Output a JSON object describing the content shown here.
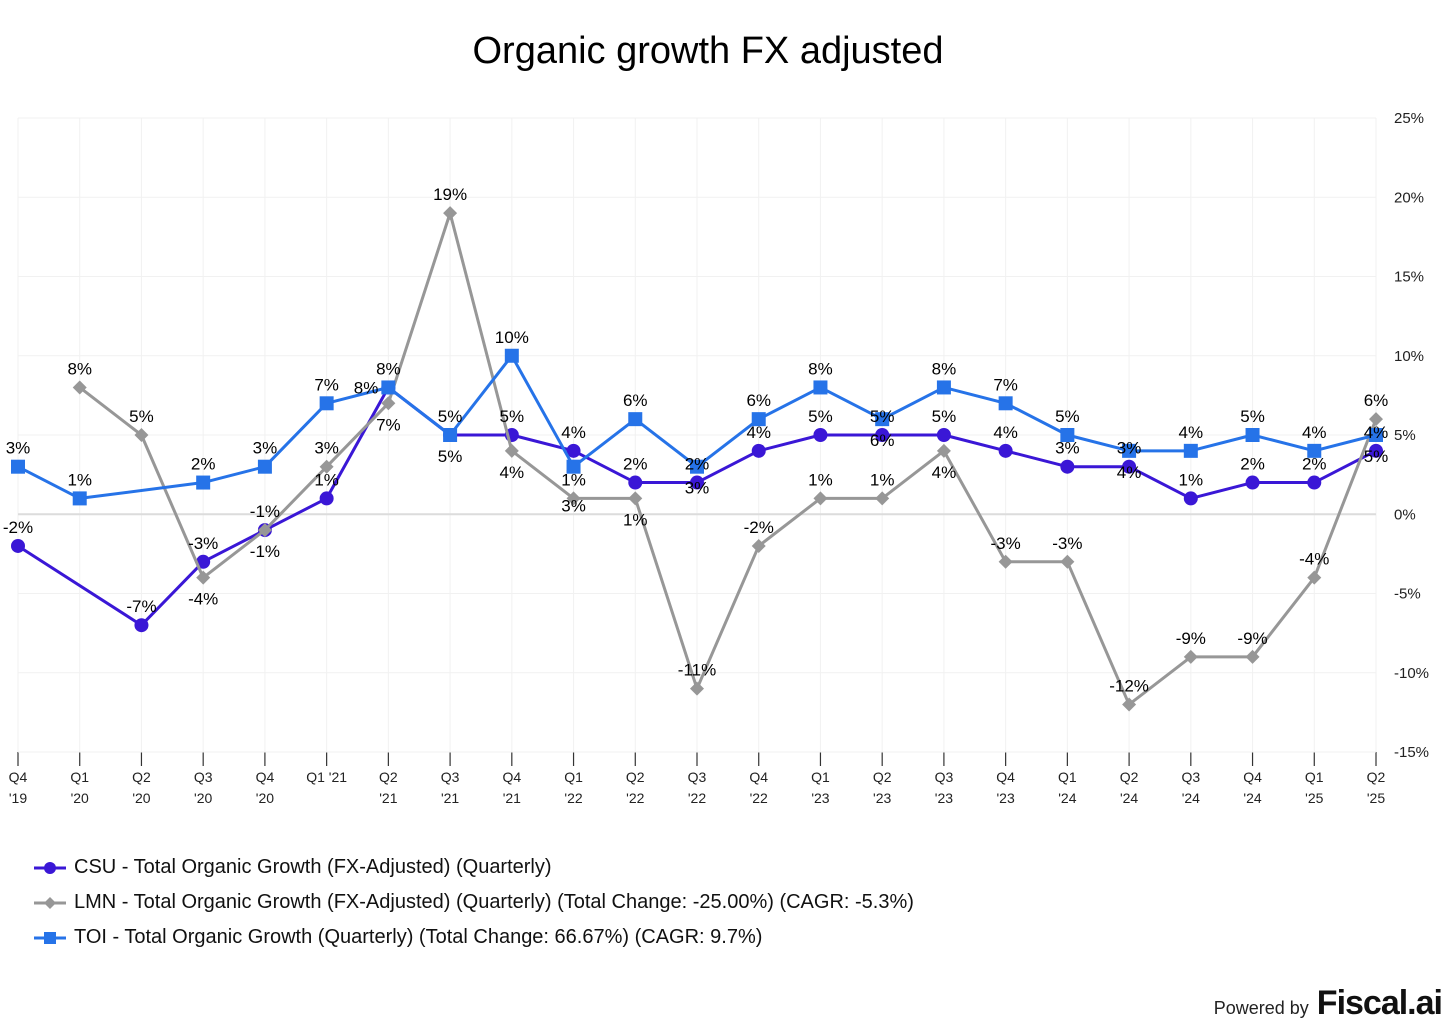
{
  "chart_data": {
    "type": "line",
    "title": "Organic growth FX adjusted",
    "xlabel": "",
    "ylabel": "",
    "ylim": [
      -15,
      25
    ],
    "yticks": [
      25,
      20,
      15,
      10,
      5,
      0,
      -5,
      -10,
      -15
    ],
    "ytick_labels": [
      "25%",
      "20%",
      "15%",
      "10%",
      "5%",
      "0%",
      "-5%",
      "-10%",
      "-15%"
    ],
    "y_axis_side": "right",
    "grid": true,
    "legend_position": "bottom-left",
    "categories": [
      [
        "Q4",
        "'19"
      ],
      [
        "Q1",
        "'20"
      ],
      [
        "Q2",
        "'20"
      ],
      [
        "Q3",
        "'20"
      ],
      [
        "Q4",
        "'20"
      ],
      [
        "Q1 '21",
        ""
      ],
      [
        "Q2",
        "'21"
      ],
      [
        "Q3",
        "'21"
      ],
      [
        "Q4",
        "'21"
      ],
      [
        "Q1",
        "'22"
      ],
      [
        "Q2",
        "'22"
      ],
      [
        "Q3",
        "'22"
      ],
      [
        "Q4",
        "'22"
      ],
      [
        "Q1",
        "'23"
      ],
      [
        "Q2",
        "'23"
      ],
      [
        "Q3",
        "'23"
      ],
      [
        "Q4",
        "'23"
      ],
      [
        "Q1",
        "'24"
      ],
      [
        "Q2",
        "'24"
      ],
      [
        "Q3",
        "'24"
      ],
      [
        "Q4",
        "'24"
      ],
      [
        "Q1",
        "'25"
      ],
      [
        "Q2",
        "'25"
      ]
    ],
    "series": [
      {
        "name": "CSU - Total Organic Growth (FX-Adjusted) (Quarterly)",
        "color": "#3a17d6",
        "marker": "circle",
        "values": [
          -2,
          null,
          -7,
          -3,
          -1,
          1,
          8,
          5,
          5,
          4,
          2,
          2,
          4,
          5,
          5,
          5,
          4,
          3,
          3,
          1,
          2,
          2,
          4
        ]
      },
      {
        "name": "LMN - Total Organic Growth (FX-Adjusted) (Quarterly) (Total Change: -25.00%) (CAGR: -5.3%)",
        "color": "#979797",
        "marker": "diamond",
        "values": [
          null,
          8,
          5,
          -4,
          -1,
          3,
          7,
          19,
          4,
          1,
          1,
          -11,
          -2,
          1,
          1,
          4,
          -3,
          -3,
          -12,
          -9,
          -9,
          -4,
          6
        ]
      },
      {
        "name": "TOI - Total Organic Growth (Quarterly) (Total Change: 66.67%) (CAGR: 9.7%)",
        "color": "#2673e8",
        "marker": "square",
        "values": [
          3,
          1,
          null,
          2,
          3,
          7,
          8,
          5,
          10,
          3,
          6,
          3,
          6,
          8,
          6,
          8,
          7,
          5,
          4,
          4,
          5,
          4,
          5
        ]
      }
    ]
  },
  "footer": {
    "powered_by": "Powered by",
    "brand": "Fiscal.ai"
  }
}
